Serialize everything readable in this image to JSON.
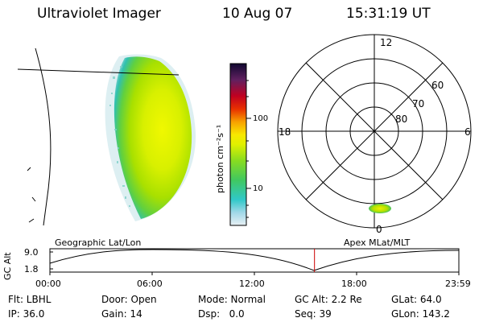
{
  "header": {
    "instrument": "Ultraviolet Imager",
    "date": "10 Aug 07",
    "time": "15:31:19 UT"
  },
  "colorbar": {
    "unit_label": "photon cm⁻²s⁻¹",
    "tick_labels": [
      "100",
      "10"
    ]
  },
  "polar_plot": {
    "mlt_labels": {
      "top": "12",
      "left": "18",
      "right": "6",
      "bottom": "0"
    },
    "lat_labels": [
      "60",
      "70",
      "80"
    ]
  },
  "altitude_panel": {
    "left_title": "Geographic Lat/Lon",
    "right_title": "Apex MLat/MLT",
    "y_axis_label": "GC Alt",
    "y_ticks": [
      "9.0",
      "1.8"
    ],
    "x_ticks": [
      "00:00",
      "06:00",
      "12:00",
      "18:00",
      "23:59"
    ],
    "current_time_fraction": 0.647
  },
  "info": {
    "row1": {
      "flt": "Flt: LBHL",
      "door": "Door: Open",
      "mode": "Mode: Normal",
      "gc_alt": "GC Alt: 2.2 Re",
      "glat": "GLat: 64.0"
    },
    "row2": {
      "ip": "IP: 36.0",
      "gain": "Gain: 14",
      "dsp": "Dsp:   0.0",
      "seq": "Seq: 39",
      "glon": "GLon: 143.2"
    }
  },
  "colors": {
    "orbit_marker": "#cc0000",
    "aurora_core": "#e8f000",
    "aurora_edge": "#30c0b0"
  }
}
